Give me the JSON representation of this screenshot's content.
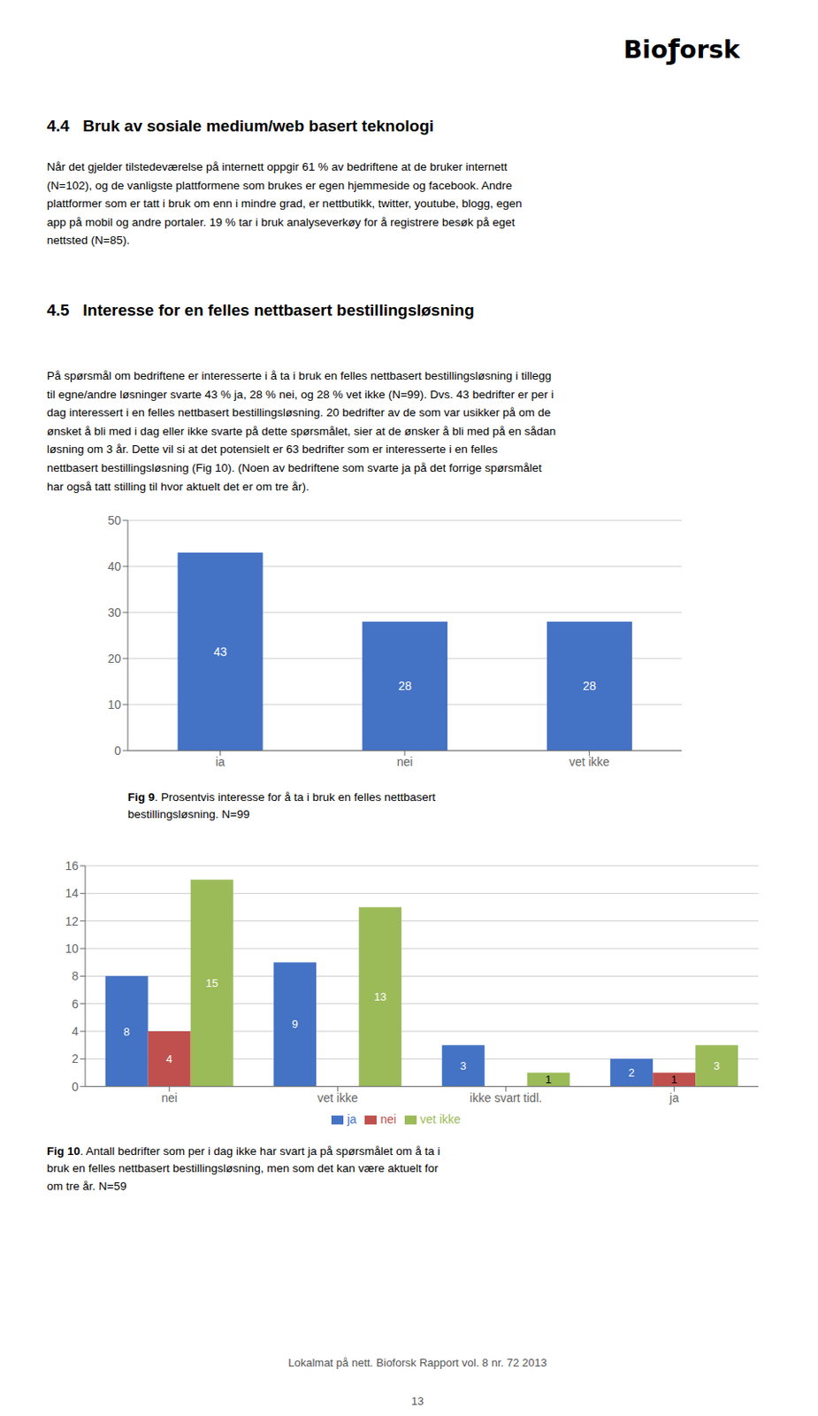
{
  "chart_data": [
    {
      "type": "bar",
      "categories": [
        "ia",
        "nei",
        "vet ikke"
      ],
      "values": [
        43,
        28,
        28
      ],
      "color": "#4472C4",
      "ylim": [
        0,
        50
      ],
      "yticks": [
        0,
        10,
        20,
        30,
        40,
        50
      ],
      "grid": true,
      "data_labels": true,
      "annotations": [
        "Bio",
        "ƒ",
        "orsk",
        "4.4   Bruk av sosiale medium/web basert teknologi",
        "Når det gjelder tilstedeværelse på internett oppgir 61 % av bedriftene at de bruker internett\n(N=102), og de vanligste plattformene som brukes er egen hjemmeside og facebook. Andre\nplattformer som er tatt i bruk om enn i mindre grad, er nettbutikk, twitter, youtube, blogg, egen\napp på mobil og andre portaler. 19 % tar i bruk analyseverkøy for å registrere besøk på eget\nnettsted (N=85).",
        "4.5   Interesse for en felles nettbasert bestillingsløsning",
        "På spørsmål om bedriftene er interesserte i å ta i bruk en felles nettbasert bestillingsløsning i tillegg\ntil egne/andre løsninger svarte 43 % ja, 28 % nei, og 28 % vet ikke (N=99). Dvs. 43 bedrifter er per i\ndag interessert i en felles nettbasert bestillingsløsning. 20 bedrifter av de som var usikker på om de\nønsket å bli med i dag eller ikke svarte på dette spørsmålet, sier at de ønsker å bli med på en sådan\nløsning om 3 år. Dette vil si at det potensielt er 63 bedrifter som er interesserte i en felles\nnettbasert bestillingsløsning (Fig 10). (Noen av bedriftene som svarte ja på det forrige spørsmålet\nhar også tatt stilling til hvor aktuelt det er om tre år).",
        "Fig 9",
        ". Prosentvis interesse for å ta i bruk en felles nettbasert\nbestillingsløsning. N=99"
      ]
    },
    {
      "type": "bar",
      "categories": [
        "nei",
        "vet ikke",
        "ikke svart tidl.",
        "ja"
      ],
      "series": [
        {
          "name": "ja",
          "color": "#4472C4",
          "values": [
            8,
            9,
            3,
            2
          ]
        },
        {
          "name": "nei",
          "color": "#C0504D",
          "values": [
            4,
            0,
            0,
            1
          ]
        },
        {
          "name": "vet ikke",
          "color": "#9BBB59",
          "values": [
            15,
            13,
            1,
            3
          ]
        }
      ],
      "ylim": [
        0,
        16
      ],
      "yticks": [
        0,
        2,
        4,
        6,
        8,
        10,
        12,
        14,
        16
      ],
      "grid": true,
      "legend": "bottom",
      "data_labels": true,
      "annotations": [
        "Fig 10",
        ". Antall bedrifter som per i dag ikke har svart ja på spørsmålet om å ta i\nbruk en felles nettbasert bestillingsløsning, men som det kan være aktuelt for\nom tre år. N=59",
        "Lokalmat på nett. Bioforsk Rapport vol. 8 nr. 72 2013",
        "13"
      ]
    }
  ]
}
